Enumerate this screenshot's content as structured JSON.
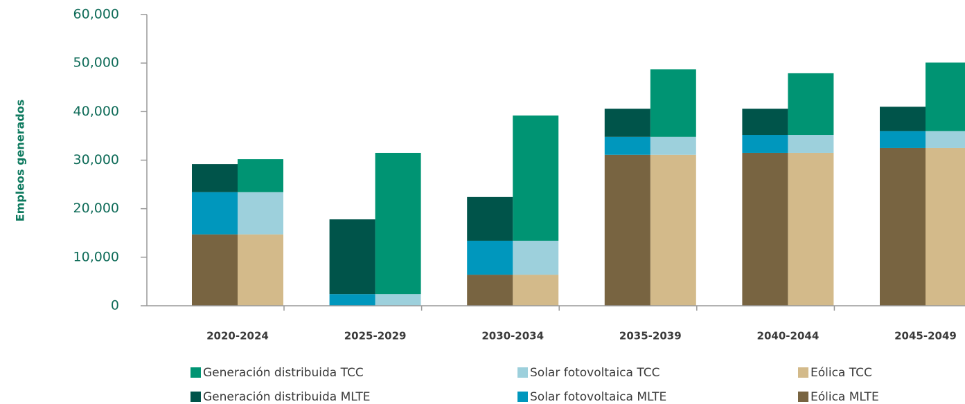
{
  "chart_data": {
    "type": "bar",
    "y_label": "Empleos generados",
    "categories": [
      "2020-2024",
      "2025-2029",
      "2030-2034",
      "2035-2039",
      "2040-2044",
      "2045-2049"
    ],
    "series": [
      {
        "name": "Generación distribuida TCC",
        "color": "#009473",
        "values": [
          6800,
          29100,
          25800,
          13900,
          12700,
          14100
        ]
      },
      {
        "name": "Solar fotovoltaica TCC",
        "color": "#9dd0dc",
        "values": [
          8700,
          2400,
          7000,
          3700,
          3700,
          3500
        ]
      },
      {
        "name": "Eólica TCC",
        "color": "#d3ba8a",
        "values": [
          14700,
          0,
          6400,
          31100,
          31500,
          32500
        ]
      },
      {
        "name": "Generación distribuida MLTE",
        "color": "#00544a",
        "values": [
          5800,
          15400,
          9000,
          5800,
          5400,
          5000
        ]
      },
      {
        "name": "Solar fotovoltaica MLTE",
        "color": "#0097bd",
        "values": [
          8700,
          2400,
          7000,
          3700,
          3700,
          3500
        ]
      },
      {
        "name": "Eólica MLTE",
        "color": "#786441",
        "values": [
          14700,
          0,
          6400,
          31100,
          31500,
          32500
        ]
      }
    ],
    "ylim": [
      0,
      60000
    ],
    "yticks": [
      0,
      {
        "value": 10000,
        "label": "10,000"
      },
      {
        "value": 20000,
        "label": "20,000"
      },
      {
        "value": 30000,
        "label": "30,000"
      },
      {
        "value": 40000,
        "label": "40,000"
      },
      {
        "value": 50000,
        "label": "50,000"
      },
      {
        "value": 60000,
        "label": "60,000"
      }
    ],
    "grid": false
  }
}
